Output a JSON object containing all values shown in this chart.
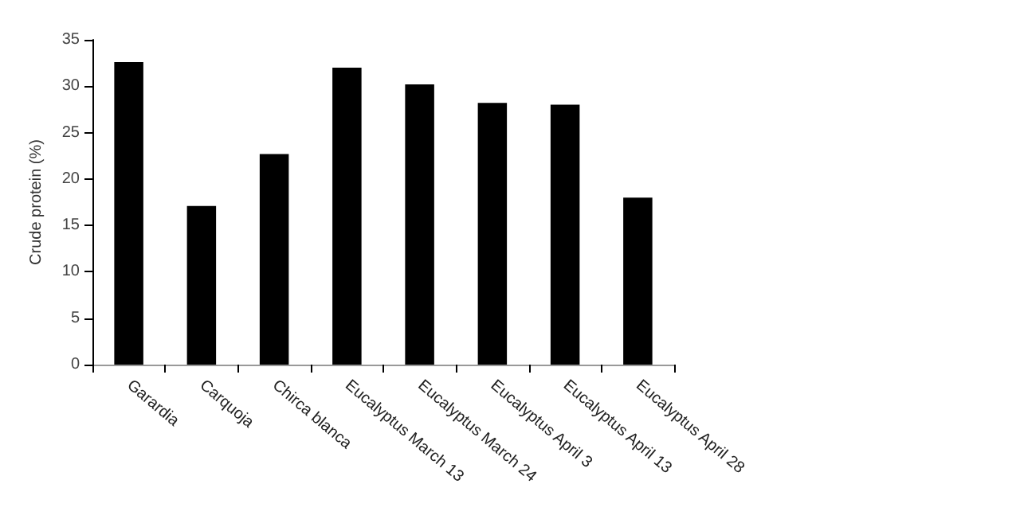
{
  "chart_data": {
    "type": "bar",
    "ylabel": "Crude protein (%)",
    "categories": [
      "Garardia",
      "Carquoja",
      "Chirca blanca",
      "Eucalyptus March 13",
      "Eucalyptus March 24",
      "Eucalyptus April 3",
      "Eucalyptus April 13",
      "Eucalyptus April 28"
    ],
    "values": [
      32.6,
      17.1,
      22.7,
      32.0,
      30.2,
      28.2,
      28.0,
      18.0
    ],
    "color": "#000000",
    "ylim": [
      0,
      35
    ],
    "yticks": [
      0,
      5,
      10,
      15,
      20,
      25,
      30,
      35
    ],
    "grid": false
  }
}
